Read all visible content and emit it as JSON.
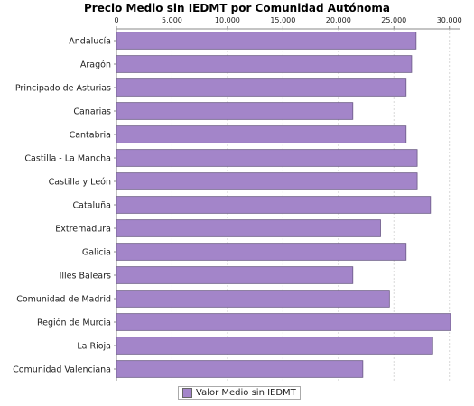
{
  "chart_data": {
    "type": "bar",
    "orientation": "horizontal",
    "title": "Precio Medio sin IEDMT por Comunidad Autónoma",
    "categories": [
      "Andalucía",
      "Aragón",
      "Principado de Asturias",
      "Canarias",
      "Cantabria",
      "Castilla - La Mancha",
      "Castilla y León",
      "Cataluña",
      "Extremadura",
      "Galicia",
      "Illes Balears",
      "Comunidad de Madrid",
      "Región de Murcia",
      "La Rioja",
      "Comunidad Valenciana"
    ],
    "series": [
      {
        "name": "Valor Medio sin IEDMT",
        "color": "#a385c9",
        "values": [
          27000,
          26600,
          26100,
          21300,
          26100,
          27100,
          27100,
          28300,
          23800,
          26100,
          21300,
          24600,
          30100,
          28500,
          22200
        ]
      }
    ],
    "x_axis": {
      "range": [
        0,
        31000
      ],
      "ticks": [
        "0",
        "5.000",
        "10.000",
        "15.000",
        "20.000",
        "25.000",
        "30.000"
      ],
      "tick_values": [
        0,
        5000,
        10000,
        15000,
        20000,
        25000,
        30000
      ],
      "position": "top"
    },
    "grid": true,
    "legend_position": "bottom"
  }
}
